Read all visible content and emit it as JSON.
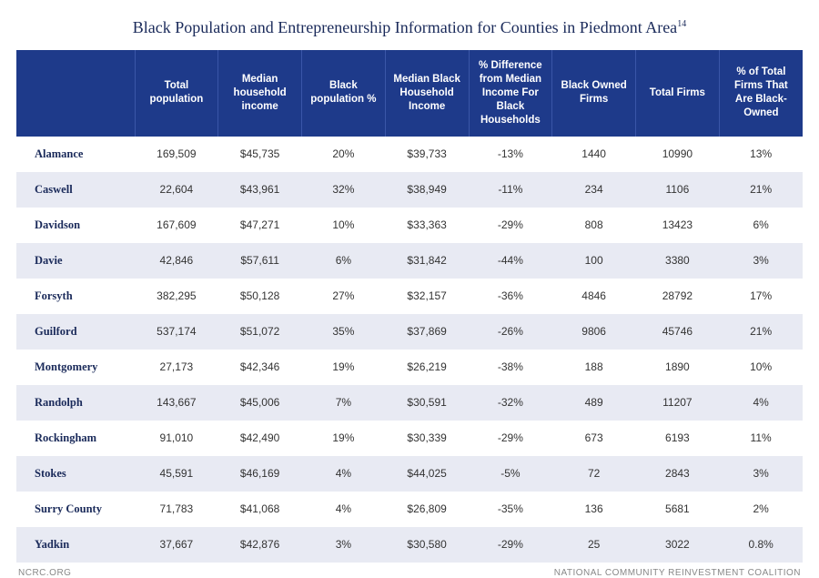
{
  "title": "Black Population and Entrepreneurship Information for Counties in Piedmont Area",
  "title_sup": "14",
  "table": {
    "type": "table",
    "header_bg": "#1e3a8a",
    "header_fg": "#ffffff",
    "row_odd_bg": "#ffffff",
    "row_even_bg": "#e8eaf3",
    "title_color": "#1a2a5a",
    "columns": [
      "",
      "Total population",
      "Median household income",
      "Black population %",
      "Median Black Household Income",
      "% Difference from Median Income For Black Households",
      "Black Owned Firms",
      "Total Firms",
      "% of Total Firms That Are Black-Owned"
    ],
    "rows": [
      [
        "Alamance",
        "169,509",
        "$45,735",
        "20%",
        "$39,733",
        "-13%",
        "1440",
        "10990",
        "13%"
      ],
      [
        "Caswell",
        "22,604",
        "$43,961",
        "32%",
        "$38,949",
        "-11%",
        "234",
        "1106",
        "21%"
      ],
      [
        "Davidson",
        "167,609",
        "$47,271",
        "10%",
        "$33,363",
        "-29%",
        "808",
        "13423",
        "6%"
      ],
      [
        "Davie",
        "42,846",
        "$57,611",
        "6%",
        "$31,842",
        "-44%",
        "100",
        "3380",
        "3%"
      ],
      [
        "Forsyth",
        "382,295",
        "$50,128",
        "27%",
        "$32,157",
        "-36%",
        "4846",
        "28792",
        "17%"
      ],
      [
        "Guilford",
        "537,174",
        "$51,072",
        "35%",
        "$37,869",
        "-26%",
        "9806",
        "45746",
        "21%"
      ],
      [
        "Montgomery",
        "27,173",
        "$42,346",
        "19%",
        "$26,219",
        "-38%",
        "188",
        "1890",
        "10%"
      ],
      [
        "Randolph",
        "143,667",
        "$45,006",
        "7%",
        "$30,591",
        "-32%",
        "489",
        "11207",
        "4%"
      ],
      [
        "Rockingham",
        "91,010",
        "$42,490",
        "19%",
        "$30,339",
        "-29%",
        "673",
        "6193",
        "11%"
      ],
      [
        "Stokes",
        "45,591",
        "$46,169",
        "4%",
        "$44,025",
        "-5%",
        "72",
        "2843",
        "3%"
      ],
      [
        "Surry County",
        "71,783",
        "$41,068",
        "4%",
        "$26,809",
        "-35%",
        "136",
        "5681",
        "2%"
      ],
      [
        "Yadkin",
        "37,667",
        "$42,876",
        "3%",
        "$30,580",
        "-29%",
        "25",
        "3022",
        "0.8%"
      ]
    ]
  },
  "footer": {
    "left": "NCRC.ORG",
    "right": "NATIONAL COMMUNITY REINVESTMENT COALITION"
  }
}
